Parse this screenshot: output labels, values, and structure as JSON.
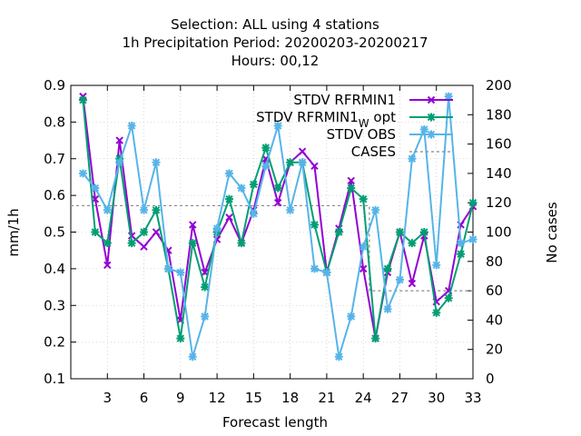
{
  "chart_data": {
    "type": "line",
    "title_lines": [
      "Selection: ALL using     4 stations",
      "1h Precipitation   Period: 20200203-20200217",
      "Hours:  00,12"
    ],
    "xlabel": "Forecast length",
    "ylabel": "mm/1h",
    "y2label": "No cases",
    "xlim": [
      0,
      33
    ],
    "ylim": [
      0.1,
      0.9
    ],
    "y2lim": [
      0,
      200
    ],
    "xticks": [
      3,
      6,
      9,
      12,
      15,
      18,
      21,
      24,
      27,
      30,
      33
    ],
    "yticks": [
      0.1,
      0.2,
      0.3,
      0.4,
      0.5,
      0.6,
      0.7,
      0.8,
      0.9
    ],
    "y2ticks": [
      0,
      20,
      40,
      60,
      80,
      100,
      120,
      140,
      160,
      180,
      200
    ],
    "legend_placement": "top-right",
    "grid": true,
    "x": [
      1,
      2,
      3,
      4,
      5,
      6,
      7,
      8,
      9,
      10,
      11,
      12,
      13,
      14,
      15,
      16,
      17,
      18,
      19,
      20,
      21,
      22,
      23,
      24,
      25,
      26,
      27,
      28,
      29,
      30,
      31,
      32,
      33
    ],
    "series": [
      {
        "name": "STDV RFRMIN1",
        "color": "#9400d3",
        "marker": "x",
        "axis": "y",
        "values": [
          0.87,
          0.59,
          0.41,
          0.75,
          0.49,
          0.46,
          0.5,
          0.45,
          0.26,
          0.52,
          0.39,
          0.48,
          0.54,
          0.47,
          0.56,
          0.7,
          0.58,
          0.69,
          0.72,
          0.68,
          0.39,
          0.51,
          0.64,
          0.4,
          0.21,
          0.39,
          0.5,
          0.36,
          0.49,
          0.31,
          0.34,
          0.52,
          0.57
        ]
      },
      {
        "name": "STDV RFRMIN1",
        "name_suffix_sub": "W",
        "name_suffix": " opt",
        "color": "#009e73",
        "marker": "asterisk",
        "axis": "y",
        "values": [
          0.86,
          0.5,
          0.47,
          0.7,
          0.47,
          0.5,
          0.56,
          0.4,
          0.21,
          0.47,
          0.35,
          0.5,
          0.59,
          0.47,
          0.63,
          0.73,
          0.62,
          0.69,
          0.69,
          0.52,
          0.39,
          0.5,
          0.62,
          0.59,
          0.21,
          0.4,
          0.5,
          0.47,
          0.5,
          0.28,
          0.32,
          0.44,
          0.58
        ]
      },
      {
        "name": "STDV OBS",
        "color": "#56b4e9",
        "marker": "asterisk",
        "axis": "y",
        "values": [
          0.66,
          0.62,
          0.56,
          0.69,
          0.79,
          0.56,
          0.69,
          0.4,
          0.39,
          0.16,
          0.27,
          0.51,
          0.66,
          0.62,
          0.55,
          0.68,
          0.79,
          0.56,
          0.69,
          0.4,
          0.39,
          0.16,
          0.27,
          0.46,
          0.56,
          0.29,
          0.37,
          0.7,
          0.78,
          0.41,
          0.87,
          0.47,
          0.48
        ]
      },
      {
        "name": "CASES",
        "color": "#888888",
        "dash": true,
        "axis": "y2",
        "values": [
          118,
          118,
          118,
          118,
          118,
          118,
          118,
          118,
          118,
          118,
          118,
          118,
          118,
          118,
          118,
          118,
          118,
          118,
          118,
          118,
          118,
          118,
          118,
          118,
          60,
          60,
          60,
          60,
          60,
          60,
          60,
          60,
          60
        ]
      }
    ]
  }
}
